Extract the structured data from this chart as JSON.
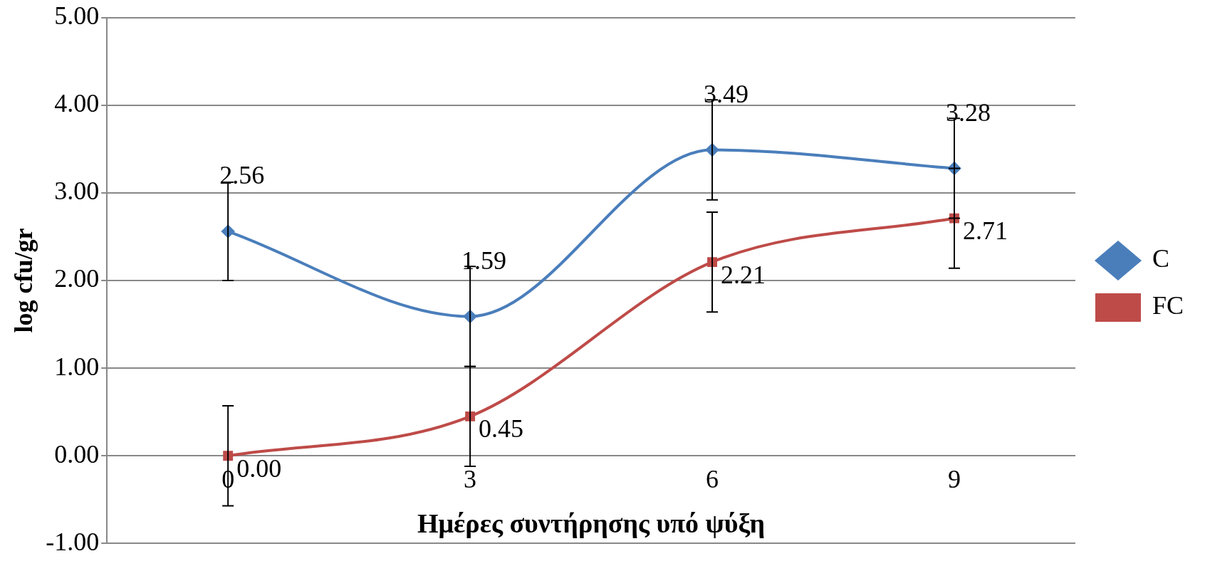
{
  "chart_data": {
    "type": "line",
    "xlabel": "Ημέρες συντήρησης υπό ψύξη",
    "ylabel": "log cfu/gr",
    "categories": [
      "0",
      "3",
      "6",
      "9"
    ],
    "series": [
      {
        "name": "C",
        "color": "#4a7ebb",
        "marker": "diamond",
        "values": [
          2.56,
          1.59,
          3.49,
          3.28
        ],
        "value_labels": [
          "2.56",
          "1.59",
          "3.49",
          "3.28"
        ],
        "errors": [
          0.56,
          0.57,
          0.57,
          0.57
        ]
      },
      {
        "name": "FC",
        "color": "#be4b48",
        "marker": "square",
        "values": [
          0.0,
          0.45,
          2.21,
          2.71
        ],
        "value_labels": [
          "0.00",
          "0.45",
          "2.21",
          "2.71"
        ],
        "errors": [
          0.57,
          0.57,
          0.57,
          0.57
        ]
      }
    ],
    "ylim": [
      -1,
      5
    ],
    "yticks": [
      {
        "value": -1,
        "label": "-1.00"
      },
      {
        "value": 0,
        "label": "0.00"
      },
      {
        "value": 1,
        "label": "1.00"
      },
      {
        "value": 2,
        "label": "2.00"
      },
      {
        "value": 3,
        "label": "3.00"
      },
      {
        "value": 4,
        "label": "4.00"
      },
      {
        "value": 5,
        "label": "5.00"
      }
    ],
    "grid": "y",
    "legend": "right"
  }
}
